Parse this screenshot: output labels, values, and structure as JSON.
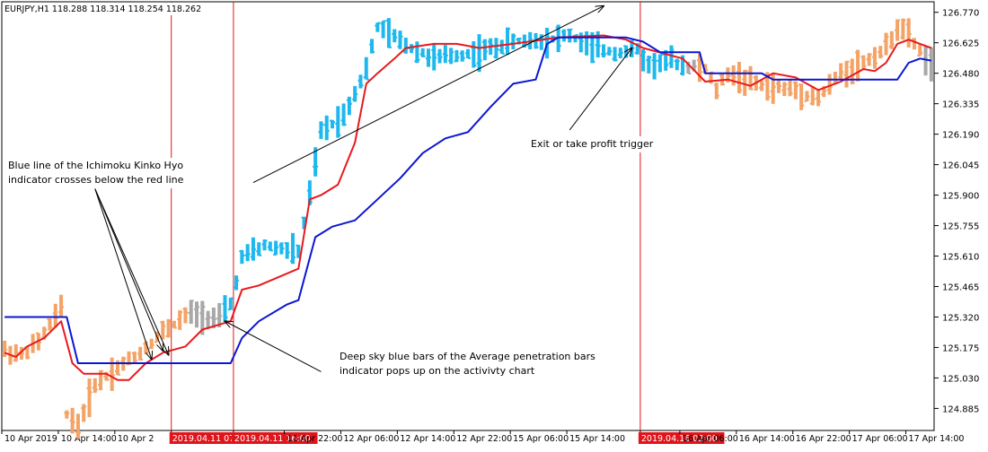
{
  "chart_data": {
    "type": "ohlc",
    "header": {
      "symbol": "EURJPY,H1",
      "ohlc": [
        "118.288",
        "118.314",
        "118.254",
        "118.262"
      ]
    },
    "y_axis": {
      "min": 124.78,
      "max": 126.82,
      "ticks": [
        "126.770",
        "126.625",
        "126.480",
        "126.335",
        "126.190",
        "126.045",
        "125.900",
        "125.755",
        "125.610",
        "125.465",
        "125.320",
        "125.175",
        "125.030",
        "124.885"
      ]
    },
    "x_axis": {
      "bar_count": 165,
      "ticks": [
        {
          "bar": 0,
          "label": "10 Apr 2019"
        },
        {
          "bar": 10,
          "label": "10 Apr 14:00"
        },
        {
          "bar": 20,
          "label": "10 Apr 2"
        },
        {
          "bar": 30,
          "label": "2019.04.11 07:00",
          "highlight": true
        },
        {
          "bar": 41,
          "label": "2019.04.11 16:00",
          "highlight": true
        },
        {
          "bar": 50,
          "label": "11 Apr 22:00"
        },
        {
          "bar": 60,
          "label": "12 Apr 06:00"
        },
        {
          "bar": 70,
          "label": "12 Apr 14:00"
        },
        {
          "bar": 80,
          "label": "12 Apr 22:00"
        },
        {
          "bar": 90,
          "label": "15 Apr 06:00"
        },
        {
          "bar": 100,
          "label": "15 Apr 14:00"
        },
        {
          "bar": 113,
          "label": "2019.04.16 02:00",
          "highlight": true
        },
        {
          "bar": 120,
          "label": "16 Apr 06:00"
        },
        {
          "bar": 130,
          "label": "16 Apr 14:00"
        },
        {
          "bar": 140,
          "label": "16 Apr 22:00"
        },
        {
          "bar": 150,
          "label": "17 Apr 06:00"
        },
        {
          "bar": 160,
          "label": "17 Apr 14:00"
        }
      ]
    },
    "vertical_markers": [
      30,
      41,
      113
    ],
    "bar_colors": {
      "up_trend": "#1EB8EE",
      "down_trend": "#F4A366",
      "neutral": "#A8A8A8"
    },
    "bar_segments": [
      {
        "from": 0,
        "to": 26,
        "color": "down_trend"
      },
      {
        "from": 27,
        "to": 38,
        "color": "down_trend"
      },
      {
        "from": 33,
        "to": 38,
        "color": "neutral"
      },
      {
        "from": 39,
        "to": 41,
        "color": "up_trend"
      },
      {
        "from": 42,
        "to": 110,
        "color": "up_trend"
      },
      {
        "from": 111,
        "to": 120,
        "color": "up_trend"
      },
      {
        "from": 121,
        "to": 122,
        "color": "neutral"
      },
      {
        "from": 123,
        "to": 158,
        "color": "down_trend"
      },
      {
        "from": 159,
        "to": 162,
        "color": "down_trend"
      },
      {
        "from": 163,
        "to": 164,
        "color": "neutral"
      }
    ],
    "price_path": [
      [
        0,
        125.16
      ],
      [
        3,
        125.14
      ],
      [
        6,
        125.2
      ],
      [
        10,
        125.36
      ],
      [
        11,
        124.86
      ],
      [
        13,
        124.8
      ],
      [
        16,
        125.0
      ],
      [
        20,
        125.08
      ],
      [
        24,
        125.15
      ],
      [
        28,
        125.25
      ],
      [
        33,
        125.34
      ],
      [
        38,
        125.31
      ],
      [
        40,
        125.38
      ],
      [
        42,
        125.6
      ],
      [
        46,
        125.66
      ],
      [
        52,
        125.63
      ],
      [
        54,
        125.9
      ],
      [
        56,
        126.2
      ],
      [
        60,
        126.28
      ],
      [
        64,
        126.5
      ],
      [
        66,
        126.7
      ],
      [
        72,
        126.6
      ],
      [
        76,
        126.55
      ],
      [
        84,
        126.58
      ],
      [
        90,
        126.63
      ],
      [
        96,
        126.64
      ],
      [
        100,
        126.66
      ],
      [
        104,
        126.6
      ],
      [
        108,
        126.58
      ],
      [
        112,
        126.59
      ],
      [
        114,
        126.52
      ],
      [
        118,
        126.54
      ],
      [
        120,
        126.52
      ],
      [
        124,
        126.5
      ],
      [
        126,
        126.4
      ],
      [
        128,
        126.48
      ],
      [
        134,
        126.42
      ],
      [
        140,
        126.4
      ],
      [
        144,
        126.36
      ],
      [
        148,
        126.48
      ],
      [
        152,
        126.53
      ],
      [
        156,
        126.6
      ],
      [
        158,
        126.7
      ],
      [
        160,
        126.66
      ],
      [
        163,
        126.55
      ],
      [
        164,
        126.52
      ]
    ],
    "series": [
      {
        "color": "#E8191E",
        "points": [
          [
            0,
            125.15
          ],
          [
            2,
            125.13
          ],
          [
            4,
            125.18
          ],
          [
            7,
            125.22
          ],
          [
            10,
            125.3
          ],
          [
            12,
            125.1
          ],
          [
            14,
            125.05
          ],
          [
            18,
            125.05
          ],
          [
            20,
            125.02
          ],
          [
            22,
            125.02
          ],
          [
            25,
            125.1
          ],
          [
            28,
            125.15
          ],
          [
            32,
            125.18
          ],
          [
            35,
            125.26
          ],
          [
            40,
            125.3
          ],
          [
            42,
            125.45
          ],
          [
            45,
            125.47
          ],
          [
            52,
            125.55
          ],
          [
            54,
            125.88
          ],
          [
            56,
            125.9
          ],
          [
            59,
            125.95
          ],
          [
            62,
            126.15
          ],
          [
            64,
            126.43
          ],
          [
            66,
            126.48
          ],
          [
            69,
            126.55
          ],
          [
            71,
            126.6
          ],
          [
            76,
            126.62
          ],
          [
            80,
            126.62
          ],
          [
            84,
            126.6
          ],
          [
            90,
            126.62
          ],
          [
            98,
            126.65
          ],
          [
            106,
            126.66
          ],
          [
            110,
            126.64
          ],
          [
            113,
            126.6
          ],
          [
            120,
            126.55
          ],
          [
            124,
            126.44
          ],
          [
            128,
            126.45
          ],
          [
            132,
            126.42
          ],
          [
            136,
            126.48
          ],
          [
            140,
            126.46
          ],
          [
            144,
            126.4
          ],
          [
            148,
            126.44
          ],
          [
            152,
            126.5
          ],
          [
            154,
            126.49
          ],
          [
            156,
            126.53
          ],
          [
            158,
            126.62
          ],
          [
            160,
            126.64
          ],
          [
            162,
            126.62
          ],
          [
            164,
            126.6
          ]
        ]
      },
      {
        "color": "#0A16D2",
        "points": [
          [
            0,
            125.32
          ],
          [
            11,
            125.32
          ],
          [
            13,
            125.1
          ],
          [
            40,
            125.1
          ],
          [
            42,
            125.22
          ],
          [
            45,
            125.3
          ],
          [
            50,
            125.38
          ],
          [
            52,
            125.4
          ],
          [
            55,
            125.7
          ],
          [
            58,
            125.75
          ],
          [
            62,
            125.78
          ],
          [
            66,
            125.88
          ],
          [
            70,
            125.98
          ],
          [
            74,
            126.1
          ],
          [
            78,
            126.17
          ],
          [
            82,
            126.2
          ],
          [
            86,
            126.32
          ],
          [
            90,
            126.43
          ],
          [
            94,
            126.45
          ],
          [
            96,
            126.62
          ],
          [
            98,
            126.65
          ],
          [
            110,
            126.65
          ],
          [
            113,
            126.63
          ],
          [
            116,
            126.58
          ],
          [
            120,
            126.58
          ],
          [
            123,
            126.58
          ],
          [
            124,
            126.48
          ],
          [
            134,
            126.48
          ],
          [
            136,
            126.45
          ],
          [
            158,
            126.45
          ],
          [
            160,
            126.53
          ],
          [
            162,
            126.55
          ],
          [
            164,
            126.54
          ]
        ]
      }
    ],
    "annotations": [
      {
        "lines": [
          "Blue line of the Ichimoku Kinko Hyo",
          "indicator crosses below the red line"
        ]
      },
      {
        "lines": [
          "Deep sky blue bars of the Average penetration bars",
          "indicator pops up on the activivty chart"
        ]
      },
      {
        "lines": [
          "Exit or take profit trigger"
        ]
      }
    ],
    "arrows": [
      {
        "from_bar": 16,
        "from_price": 125.93,
        "to_bar": 26,
        "to_price": 125.12
      },
      {
        "from_bar": 16,
        "from_price": 125.93,
        "to_bar": 28,
        "to_price": 125.16
      },
      {
        "from_bar": 16,
        "from_price": 125.93,
        "to_bar": 29,
        "to_price": 125.14
      },
      {
        "from_bar": 56,
        "from_price": 125.06,
        "to_bar": 39,
        "to_price": 125.3
      },
      {
        "from_bar": 100,
        "from_price": 126.21,
        "to_bar": 111,
        "to_price": 126.6
      },
      {
        "from_bar": 44,
        "from_price": 125.96,
        "to_bar": 106,
        "to_price": 126.8
      }
    ]
  }
}
